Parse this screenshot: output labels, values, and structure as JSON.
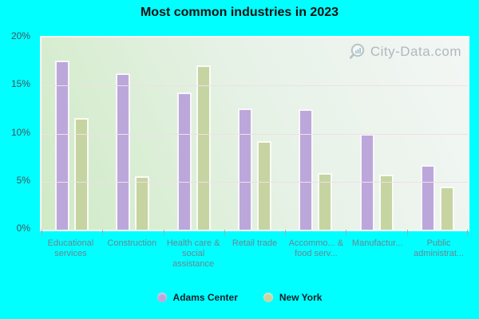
{
  "title": "Most common industries in 2023",
  "watermark": {
    "text": "City-Data.com"
  },
  "colors": {
    "page_background": "#00ffff",
    "adams_center_bar": "#bca7da",
    "new_york_bar": "#c6d4a2",
    "gridline": "#efdfe8",
    "category_label": "#6d8494",
    "axis_label": "#44525e"
  },
  "chart_data": {
    "type": "bar",
    "title": "Most common industries in 2023",
    "categories": [
      "Educational services",
      "Construction",
      "Health care & social assistance",
      "Retail trade",
      "Accommo... & food serv...",
      "Manufactur...",
      "Public administrat..."
    ],
    "series": [
      {
        "name": "Adams Center",
        "color": "#bca7da",
        "values": [
          17.6,
          16.3,
          14.3,
          12.6,
          12.5,
          10.0,
          6.7
        ]
      },
      {
        "name": "New York",
        "color": "#c6d4a2",
        "values": [
          11.6,
          5.6,
          17.1,
          9.2,
          5.9,
          5.7,
          4.5
        ]
      }
    ],
    "xlabel": "",
    "ylabel": "",
    "ylim": [
      0,
      20
    ],
    "yticks": [
      "0%",
      "5%",
      "10%",
      "15%",
      "20%"
    ],
    "grid": true,
    "legend_position": "bottom"
  }
}
